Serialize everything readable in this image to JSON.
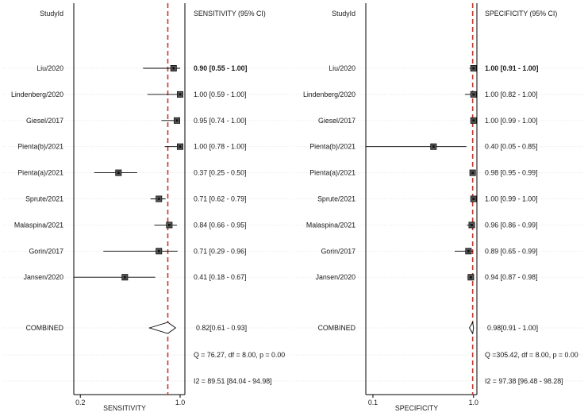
{
  "chart_data": [
    {
      "type": "forest",
      "id_header": "StudyId",
      "ci_header": "SENSITIVITY (95% CI)",
      "xlabel": "SENSITIVITY",
      "x_scale": "log",
      "xlim": [
        0.18,
        1.08
      ],
      "x_ticks": [
        {
          "value": 0.2,
          "label": "0.2"
        },
        {
          "value": 1.0,
          "label": "1.0"
        }
      ],
      "pooled_line": 0.82,
      "studies": [
        {
          "name": "Liu/2020",
          "est": 0.9,
          "lo": 0.55,
          "hi": 1.0,
          "ci_text": "0.90 [0.55 - 1.00]",
          "bold": true
        },
        {
          "name": "Lindenberg/2020",
          "est": 1.0,
          "lo": 0.59,
          "hi": 1.0,
          "ci_text": "1.00 [0.59 - 1.00]",
          "bold": false
        },
        {
          "name": "Giesel/2017",
          "est": 0.95,
          "lo": 0.74,
          "hi": 1.0,
          "ci_text": "0.95 [0.74 - 1.00]",
          "bold": false
        },
        {
          "name": "Pienta(b)/2021",
          "est": 1.0,
          "lo": 0.78,
          "hi": 1.0,
          "ci_text": "1.00 [0.78 - 1.00]",
          "bold": false
        },
        {
          "name": "Pienta(a)/2021",
          "est": 0.37,
          "lo": 0.25,
          "hi": 0.5,
          "ci_text": "0.37 [0.25 - 0.50]",
          "bold": false
        },
        {
          "name": "Sprute/2021",
          "est": 0.71,
          "lo": 0.62,
          "hi": 0.79,
          "ci_text": "0.71 [0.62 - 0.79]",
          "bold": false
        },
        {
          "name": "Malaspina/2021",
          "est": 0.84,
          "lo": 0.66,
          "hi": 0.95,
          "ci_text": "0.84 [0.66 - 0.95]",
          "bold": false
        },
        {
          "name": "Gorin/2017",
          "est": 0.71,
          "lo": 0.29,
          "hi": 0.96,
          "ci_text": "0.71 [0.29 - 0.96]",
          "bold": false
        },
        {
          "name": "Jansen/2020",
          "est": 0.41,
          "lo": 0.18,
          "hi": 0.67,
          "ci_text": "0.41 [0.18 - 0.67]",
          "bold": false
        }
      ],
      "combined": {
        "name": "COMBINED",
        "est": 0.82,
        "lo": 0.61,
        "hi": 0.93,
        "ci_text": "0.82[0.61 - 0.93]"
      },
      "q_text": "Q = 76.27, df = 8.00, p =  0.00",
      "i2_text": "I2 = 89.51 [84.04 - 94.98]"
    },
    {
      "type": "forest",
      "id_header": "StudyId",
      "ci_header": "SPECIFICITY (95% CI)",
      "xlabel": "SPECIFICITY",
      "x_scale": "log",
      "xlim": [
        0.085,
        1.08
      ],
      "x_ticks": [
        {
          "value": 0.1,
          "label": "0.1"
        },
        {
          "value": 1.0,
          "label": "1.0"
        }
      ],
      "pooled_line": 0.98,
      "studies": [
        {
          "name": "Liu/2020",
          "est": 1.0,
          "lo": 0.91,
          "hi": 1.0,
          "ci_text": "1.00 [0.91 - 1.00]",
          "bold": true
        },
        {
          "name": "Lindenberg/2020",
          "est": 1.0,
          "lo": 0.82,
          "hi": 1.0,
          "ci_text": "1.00 [0.82 - 1.00]",
          "bold": false
        },
        {
          "name": "Giesel/2017",
          "est": 1.0,
          "lo": 0.99,
          "hi": 1.0,
          "ci_text": "1.00 [0.99 - 1.00]",
          "bold": false
        },
        {
          "name": "Pienta(b)/2021",
          "est": 0.4,
          "lo": 0.05,
          "hi": 0.85,
          "ci_text": "0.40 [0.05 - 0.85]",
          "bold": false
        },
        {
          "name": "Pienta(a)/2021",
          "est": 0.98,
          "lo": 0.95,
          "hi": 0.99,
          "ci_text": "0.98 [0.95 - 0.99]",
          "bold": false
        },
        {
          "name": "Sprute/2021",
          "est": 1.0,
          "lo": 0.99,
          "hi": 1.0,
          "ci_text": "1.00 [0.99 - 1.00]",
          "bold": false
        },
        {
          "name": "Malaspina/2021",
          "est": 0.96,
          "lo": 0.86,
          "hi": 0.99,
          "ci_text": "0.96 [0.86 - 0.99]",
          "bold": false
        },
        {
          "name": "Gorin/2017",
          "est": 0.89,
          "lo": 0.65,
          "hi": 0.99,
          "ci_text": "0.89 [0.65 - 0.99]",
          "bold": false
        },
        {
          "name": "Jansen/2020",
          "est": 0.94,
          "lo": 0.87,
          "hi": 0.98,
          "ci_text": "0.94 [0.87 - 0.98]",
          "bold": false
        }
      ],
      "combined": {
        "name": "COMBINED",
        "est": 0.98,
        "lo": 0.91,
        "hi": 1.0,
        "ci_text": "0.98[0.91 - 1.00]"
      },
      "q_text": "Q =305.42, df = 8.00, p =  0.00",
      "i2_text": "I2 = 97.38 [96.48 - 98.28]"
    }
  ]
}
